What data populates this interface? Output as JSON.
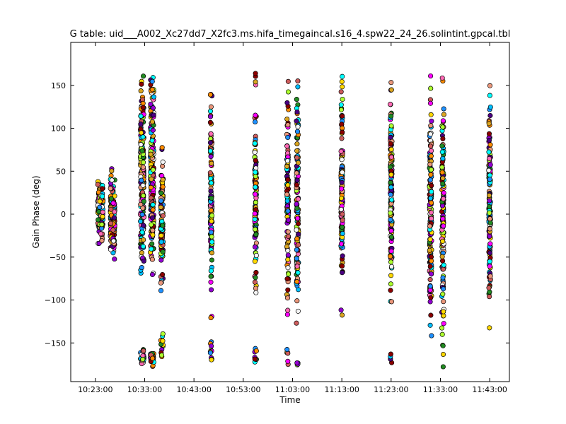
{
  "chart_data": {
    "type": "scatter",
    "title": "G table: uid___A002_Xc27dd7_X2fc3.ms.hifa_timegaincal.s16_4.spw22_24_26.solintint.gpcal.tbl",
    "xlabel": "Time",
    "ylabel": "Gain Phase (deg)",
    "xlim": [
      "10:18:00",
      "11:47:00"
    ],
    "ylim": [
      -195,
      200
    ],
    "x_ticks": [
      "10:23:00",
      "10:33:00",
      "10:43:00",
      "10:53:00",
      "11:03:00",
      "11:13:00",
      "11:23:00",
      "11:33:00",
      "11:43:00"
    ],
    "y_ticks": [
      150,
      100,
      50,
      0,
      -50,
      -100,
      -150
    ],
    "grid": false,
    "series_colors": [
      "#8b0000",
      "#ff69b4",
      "#00bfff",
      "#ffd700",
      "#9400d3",
      "#adff2f",
      "#cd5c5c",
      "#ff00ff",
      "#00ffff",
      "#1e90ff",
      "#ff8c00",
      "#228b22",
      "#f5f5f5",
      "#4b0082",
      "#e9967a",
      "#daa520"
    ],
    "scans": [
      {
        "time": "10:24:00",
        "spread": 1.5,
        "range": [
          -40,
          45
        ],
        "count": 140
      },
      {
        "time": "10:26:30",
        "spread": 1.3,
        "range": [
          -60,
          55
        ],
        "count": 140
      },
      {
        "time": "10:32:30",
        "spread": 1.0,
        "range": [
          -90,
          170
        ],
        "count": 200
      },
      {
        "time": "10:32:30",
        "spread": 1.0,
        "range": [
          -180,
          -155
        ],
        "count": 25
      },
      {
        "time": "10:34:30",
        "spread": 1.0,
        "range": [
          -90,
          175
        ],
        "count": 200
      },
      {
        "time": "10:34:30",
        "spread": 1.0,
        "range": [
          -180,
          -155
        ],
        "count": 25
      },
      {
        "time": "10:36:30",
        "spread": 0.7,
        "range": [
          -105,
          90
        ],
        "count": 110
      },
      {
        "time": "10:36:30",
        "spread": 0.7,
        "range": [
          -175,
          -130
        ],
        "count": 14
      },
      {
        "time": "10:46:30",
        "spread": 0.5,
        "range": [
          -125,
          165
        ],
        "count": 130
      },
      {
        "time": "10:46:30",
        "spread": 0.5,
        "range": [
          -175,
          -145
        ],
        "count": 10
      },
      {
        "time": "10:55:30",
        "spread": 0.5,
        "range": [
          -95,
          130
        ],
        "count": 110
      },
      {
        "time": "10:55:30",
        "spread": 0.5,
        "range": [
          -175,
          -150
        ],
        "count": 8
      },
      {
        "time": "10:55:30",
        "spread": 0.2,
        "range": [
          145,
          170
        ],
        "count": 4
      },
      {
        "time": "11:02:00",
        "spread": 0.5,
        "range": [
          -135,
          165
        ],
        "count": 120
      },
      {
        "time": "11:02:00",
        "spread": 0.5,
        "range": [
          -180,
          -150
        ],
        "count": 6
      },
      {
        "time": "11:04:00",
        "spread": 0.6,
        "range": [
          -130,
          175
        ],
        "count": 130
      },
      {
        "time": "11:04:00",
        "spread": 0.6,
        "range": [
          -178,
          -170
        ],
        "count": 4
      },
      {
        "time": "11:13:00",
        "spread": 0.5,
        "range": [
          -120,
          165
        ],
        "count": 140
      },
      {
        "time": "11:23:00",
        "spread": 0.5,
        "range": [
          -115,
          160
        ],
        "count": 140
      },
      {
        "time": "11:23:00",
        "spread": 0.4,
        "range": [
          -175,
          -160
        ],
        "count": 4
      },
      {
        "time": "11:31:00",
        "spread": 0.6,
        "range": [
          -175,
          178
        ],
        "count": 150
      },
      {
        "time": "11:33:30",
        "spread": 0.6,
        "range": [
          -180,
          178
        ],
        "count": 150
      },
      {
        "time": "11:43:00",
        "spread": 0.5,
        "range": [
          -140,
          168
        ],
        "count": 140
      }
    ]
  }
}
